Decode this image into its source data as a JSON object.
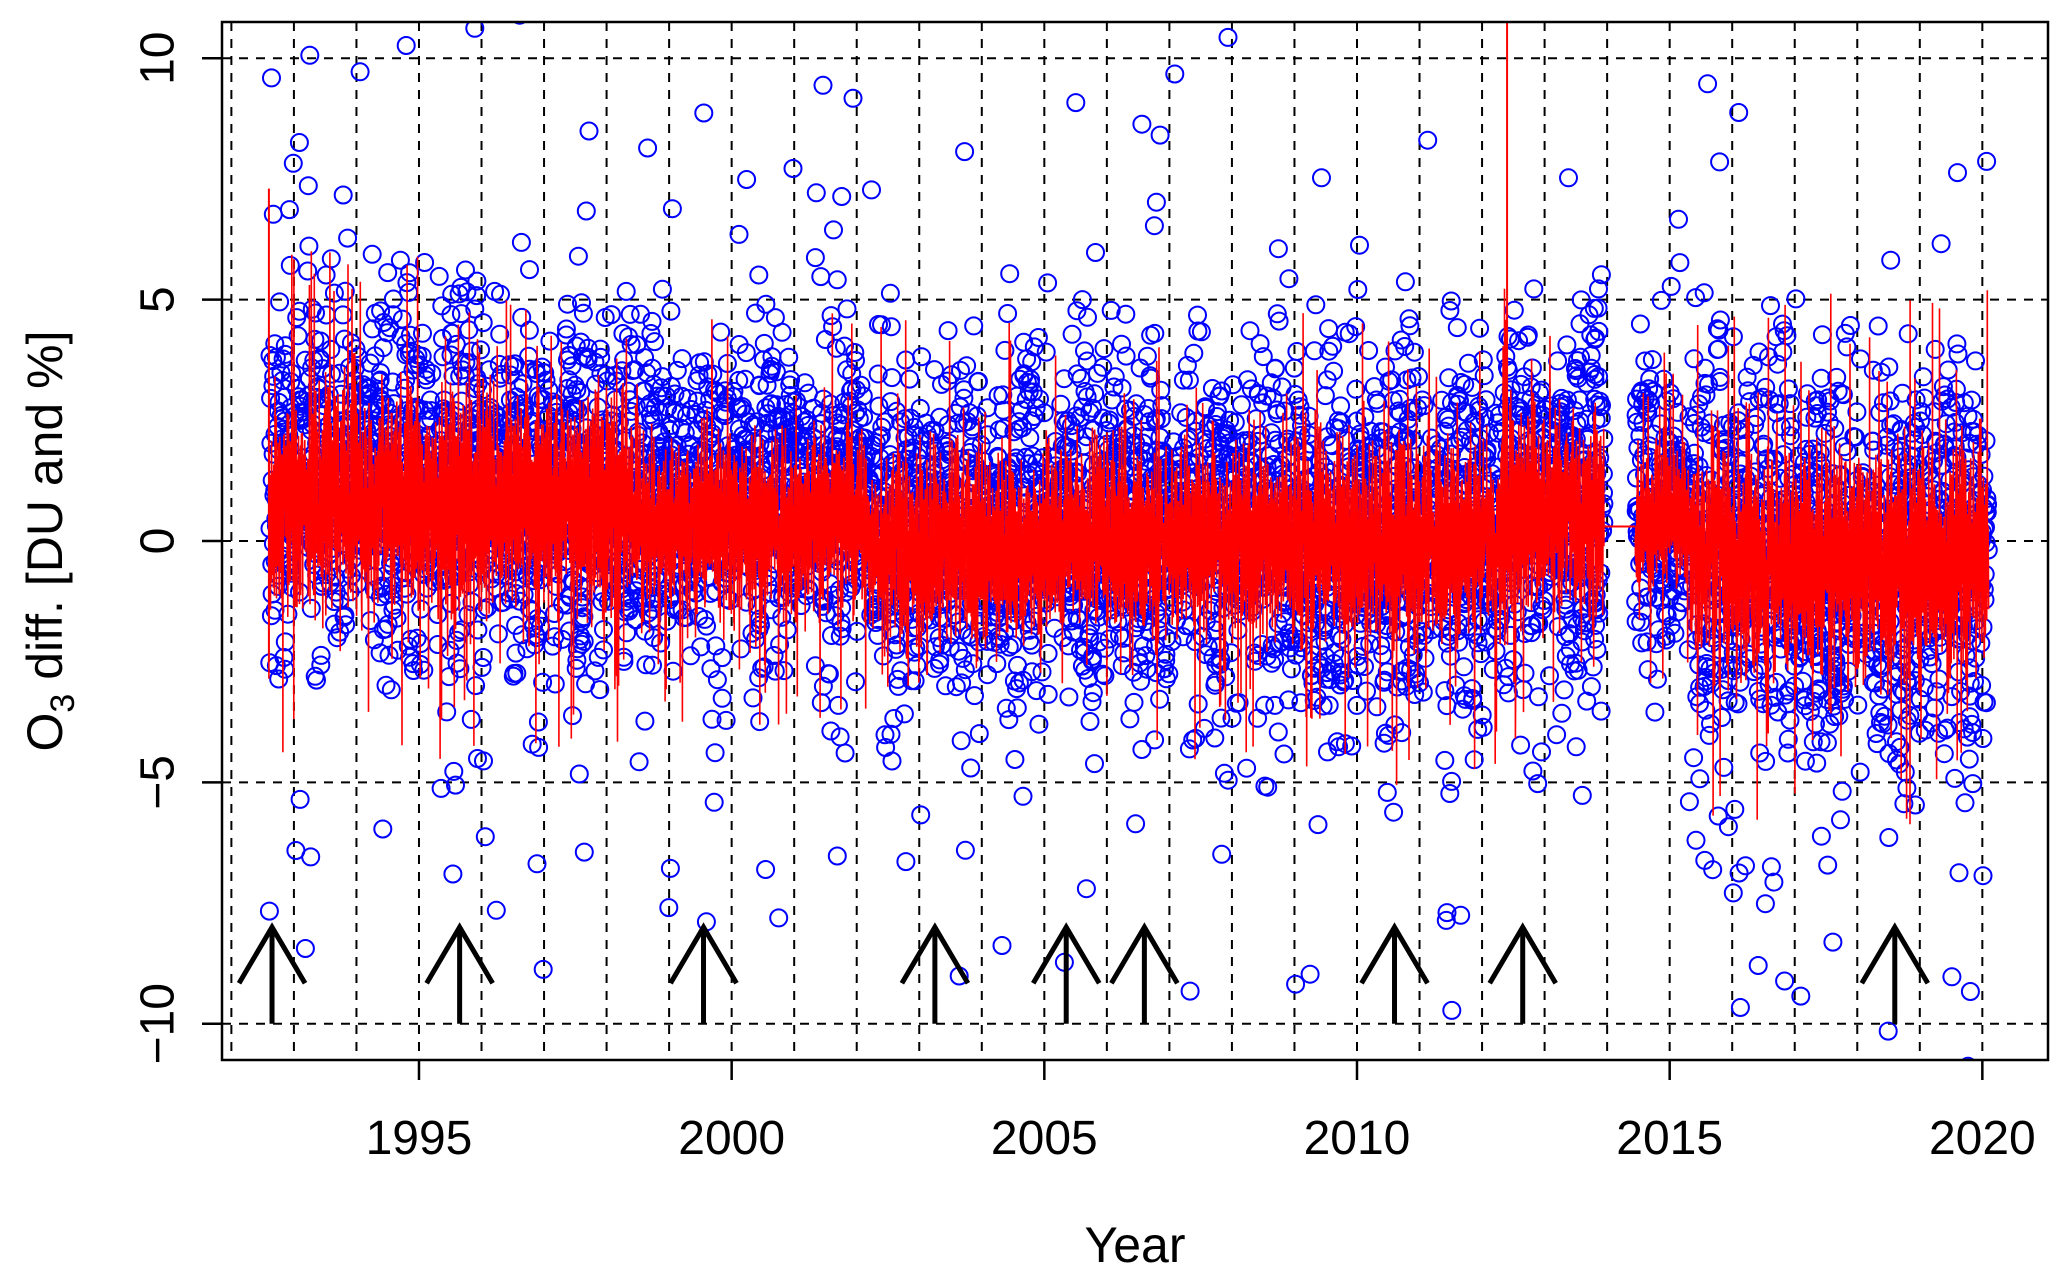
{
  "chart_data": {
    "type": "scatter",
    "title": "",
    "xlabel": "Year",
    "ylabel_main": "O",
    "ylabel_sub": "3",
    "ylabel_rest": " diff. [DU and %]",
    "xlim": [
      1991.85,
      2021.05
    ],
    "ylim": [
      -10.75,
      10.75
    ],
    "x_ticks": [
      1995,
      2000,
      2005,
      2010,
      2015,
      2020
    ],
    "x_tick_labels": [
      "1995",
      "2000",
      "2005",
      "2010",
      "2015",
      "2020"
    ],
    "y_ticks": [
      -10,
      -5,
      0,
      5,
      10
    ],
    "y_tick_labels": [
      "−10",
      "−5",
      "0",
      "5",
      "10"
    ],
    "grid": {
      "horizontal": [
        -10,
        -5,
        0,
        5,
        10
      ],
      "vertical_years": [
        1992,
        1993,
        1994,
        1995,
        1996,
        1997,
        1998,
        1999,
        2000,
        2001,
        2002,
        2003,
        2004,
        2005,
        2006,
        2007,
        2008,
        2009,
        2010,
        2011,
        2012,
        2013,
        2014,
        2015,
        2016,
        2017,
        2018,
        2019,
        2020
      ],
      "style": "dashed"
    },
    "series": [
      {
        "kind": "points",
        "marker": "open-circle",
        "color": "#0000ff",
        "data_gap": [
          2013.95,
          2014.45
        ],
        "segments": [
          {
            "from": 1992.6,
            "to": 1995.0,
            "center": 1.5,
            "spread": 3.4
          },
          {
            "from": 1995.0,
            "to": 1998.5,
            "center": 1.2,
            "spread": 3.6
          },
          {
            "from": 1998.5,
            "to": 2002.2,
            "center": 1.0,
            "spread": 3.0
          },
          {
            "from": 2002.2,
            "to": 2005.0,
            "center": 0.2,
            "spread": 3.3
          },
          {
            "from": 2005.0,
            "to": 2009.0,
            "center": 0.3,
            "spread": 3.4
          },
          {
            "from": 2009.0,
            "to": 2012.3,
            "center": 0.1,
            "spread": 3.6
          },
          {
            "from": 2012.3,
            "to": 2013.95,
            "center": 0.8,
            "spread": 3.8
          },
          {
            "from": 2014.45,
            "to": 2015.4,
            "center": 0.6,
            "spread": 2.6
          },
          {
            "from": 2015.4,
            "to": 2020.1,
            "center": -0.4,
            "spread": 4.2
          }
        ]
      },
      {
        "kind": "line",
        "color": "#ff0000",
        "segments": [
          {
            "from": 1992.6,
            "to": 1995.0,
            "center": 0.8,
            "spread": 1.5
          },
          {
            "from": 1995.0,
            "to": 1998.5,
            "center": 0.7,
            "spread": 1.5
          },
          {
            "from": 1998.5,
            "to": 2002.2,
            "center": 0.4,
            "spread": 1.2
          },
          {
            "from": 2002.2,
            "to": 2005.0,
            "center": -0.1,
            "spread": 1.3
          },
          {
            "from": 2005.0,
            "to": 2009.0,
            "center": 0.0,
            "spread": 1.3
          },
          {
            "from": 2009.0,
            "to": 2012.3,
            "center": -0.1,
            "spread": 1.4
          },
          {
            "from": 2012.3,
            "to": 2013.95,
            "center": 0.6,
            "spread": 1.5
          },
          {
            "from": 2014.45,
            "to": 2015.4,
            "center": 0.4,
            "spread": 1.0
          },
          {
            "from": 2015.4,
            "to": 2020.1,
            "center": -0.4,
            "spread": 1.6
          }
        ],
        "spikes": [
          {
            "x": 2012.4,
            "y_min": -0.3,
            "y_max": 10.75
          },
          {
            "x": 1992.6,
            "y_min": -2.5,
            "y_max": 7.3
          }
        ]
      }
    ],
    "event_arrows": [
      1992.65,
      1995.65,
      1999.55,
      2003.25,
      2005.35,
      2006.6,
      2010.6,
      2012.65,
      2018.6
    ],
    "arrow_y_range": [
      -10,
      -8
    ]
  }
}
